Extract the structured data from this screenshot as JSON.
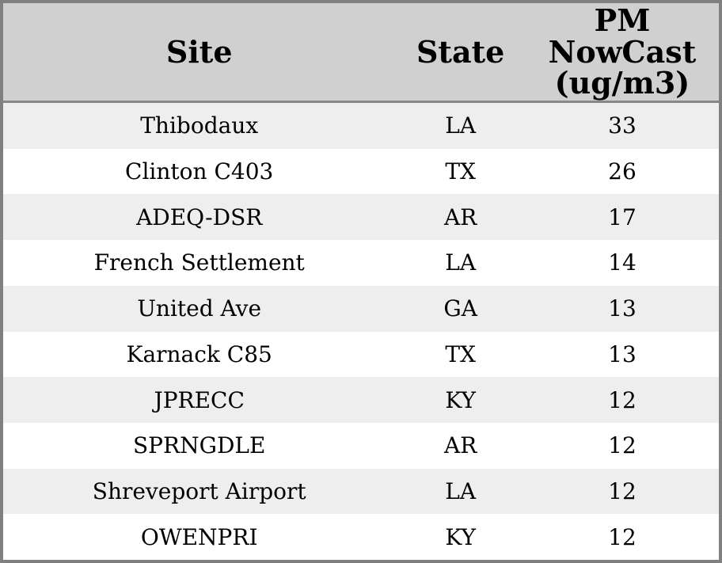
{
  "table": {
    "columns": [
      {
        "label": "Site"
      },
      {
        "label": "State"
      },
      {
        "label": "PM\nNowCast\n(ug/m3)"
      }
    ],
    "rows": [
      {
        "site": "Thibodaux",
        "state": "LA",
        "pm_nowcast": 33
      },
      {
        "site": "Clinton C403",
        "state": "TX",
        "pm_nowcast": 26
      },
      {
        "site": "ADEQ-DSR",
        "state": "AR",
        "pm_nowcast": 17
      },
      {
        "site": "French Settlement",
        "state": "LA",
        "pm_nowcast": 14
      },
      {
        "site": "United Ave",
        "state": "GA",
        "pm_nowcast": 13
      },
      {
        "site": "Karnack C85",
        "state": "TX",
        "pm_nowcast": 13
      },
      {
        "site": "JPRECC",
        "state": "KY",
        "pm_nowcast": 12
      },
      {
        "site": "SPRNGDLE",
        "state": "AR",
        "pm_nowcast": 12
      },
      {
        "site": "Shreveport Airport",
        "state": "LA",
        "pm_nowcast": 12
      },
      {
        "site": "OWENPRI",
        "state": "KY",
        "pm_nowcast": 12
      }
    ]
  },
  "chart_data": {
    "type": "table",
    "title": "",
    "columns": [
      "Site",
      "State",
      "PM NowCast (ug/m3)"
    ],
    "rows": [
      [
        "Thibodaux",
        "LA",
        33
      ],
      [
        "Clinton C403",
        "TX",
        26
      ],
      [
        "ADEQ-DSR",
        "AR",
        17
      ],
      [
        "French Settlement",
        "LA",
        14
      ],
      [
        "United Ave",
        "GA",
        13
      ],
      [
        "Karnack C85",
        "TX",
        13
      ],
      [
        "JPRECC",
        "KY",
        12
      ],
      [
        "SPRNGDLE",
        "AR",
        12
      ],
      [
        "Shreveport Airport",
        "LA",
        12
      ],
      [
        "OWENPRI",
        "KY",
        12
      ]
    ]
  },
  "colors": {
    "outer_border": "#808080",
    "header_background": "#d0d0d0",
    "header_separator": "#888888",
    "row_stripe": "#eeeeee",
    "row_background": "#ffffff",
    "text": "#000000"
  }
}
